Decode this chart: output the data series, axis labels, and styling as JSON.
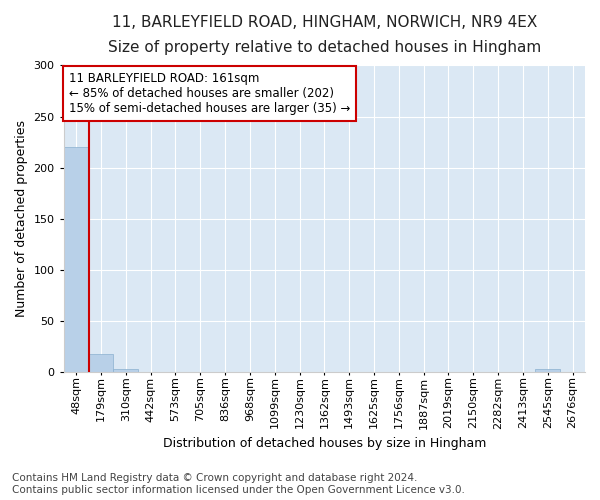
{
  "title_line1": "11, BARLEYFIELD ROAD, HINGHAM, NORWICH, NR9 4EX",
  "title_line2": "Size of property relative to detached houses in Hingham",
  "xlabel": "Distribution of detached houses by size in Hingham",
  "ylabel": "Number of detached properties",
  "bin_labels": [
    "48sqm",
    "179sqm",
    "310sqm",
    "442sqm",
    "573sqm",
    "705sqm",
    "836sqm",
    "968sqm",
    "1099sqm",
    "1230sqm",
    "1362sqm",
    "1493sqm",
    "1625sqm",
    "1756sqm",
    "1887sqm",
    "2019sqm",
    "2150sqm",
    "2282sqm",
    "2413sqm",
    "2545sqm",
    "2676sqm"
  ],
  "bar_heights": [
    220,
    18,
    3,
    0,
    0,
    0,
    0,
    0,
    0,
    0,
    0,
    0,
    0,
    0,
    0,
    0,
    0,
    0,
    0,
    3,
    0
  ],
  "bar_color": "#b8d0e8",
  "bar_edge_color": "#8ab0d0",
  "vline_x_bar_index": 1,
  "annotation_text": "11 BARLEYFIELD ROAD: 161sqm\n← 85% of detached houses are smaller (202)\n15% of semi-detached houses are larger (35) →",
  "annotation_box_facecolor": "#ffffff",
  "annotation_box_edgecolor": "#cc0000",
  "vline_color": "#cc0000",
  "ylim": [
    0,
    300
  ],
  "yticks": [
    0,
    50,
    100,
    150,
    200,
    250,
    300
  ],
  "footer_line1": "Contains HM Land Registry data © Crown copyright and database right 2024.",
  "footer_line2": "Contains public sector information licensed under the Open Government Licence v3.0.",
  "fig_bg_color": "#ffffff",
  "plot_bg_color": "#dbe8f4",
  "grid_color": "#ffffff",
  "title_fontsize": 11,
  "subtitle_fontsize": 10,
  "ylabel_fontsize": 9,
  "xlabel_fontsize": 9,
  "tick_fontsize": 8,
  "footer_fontsize": 7.5,
  "annotation_fontsize": 8.5
}
